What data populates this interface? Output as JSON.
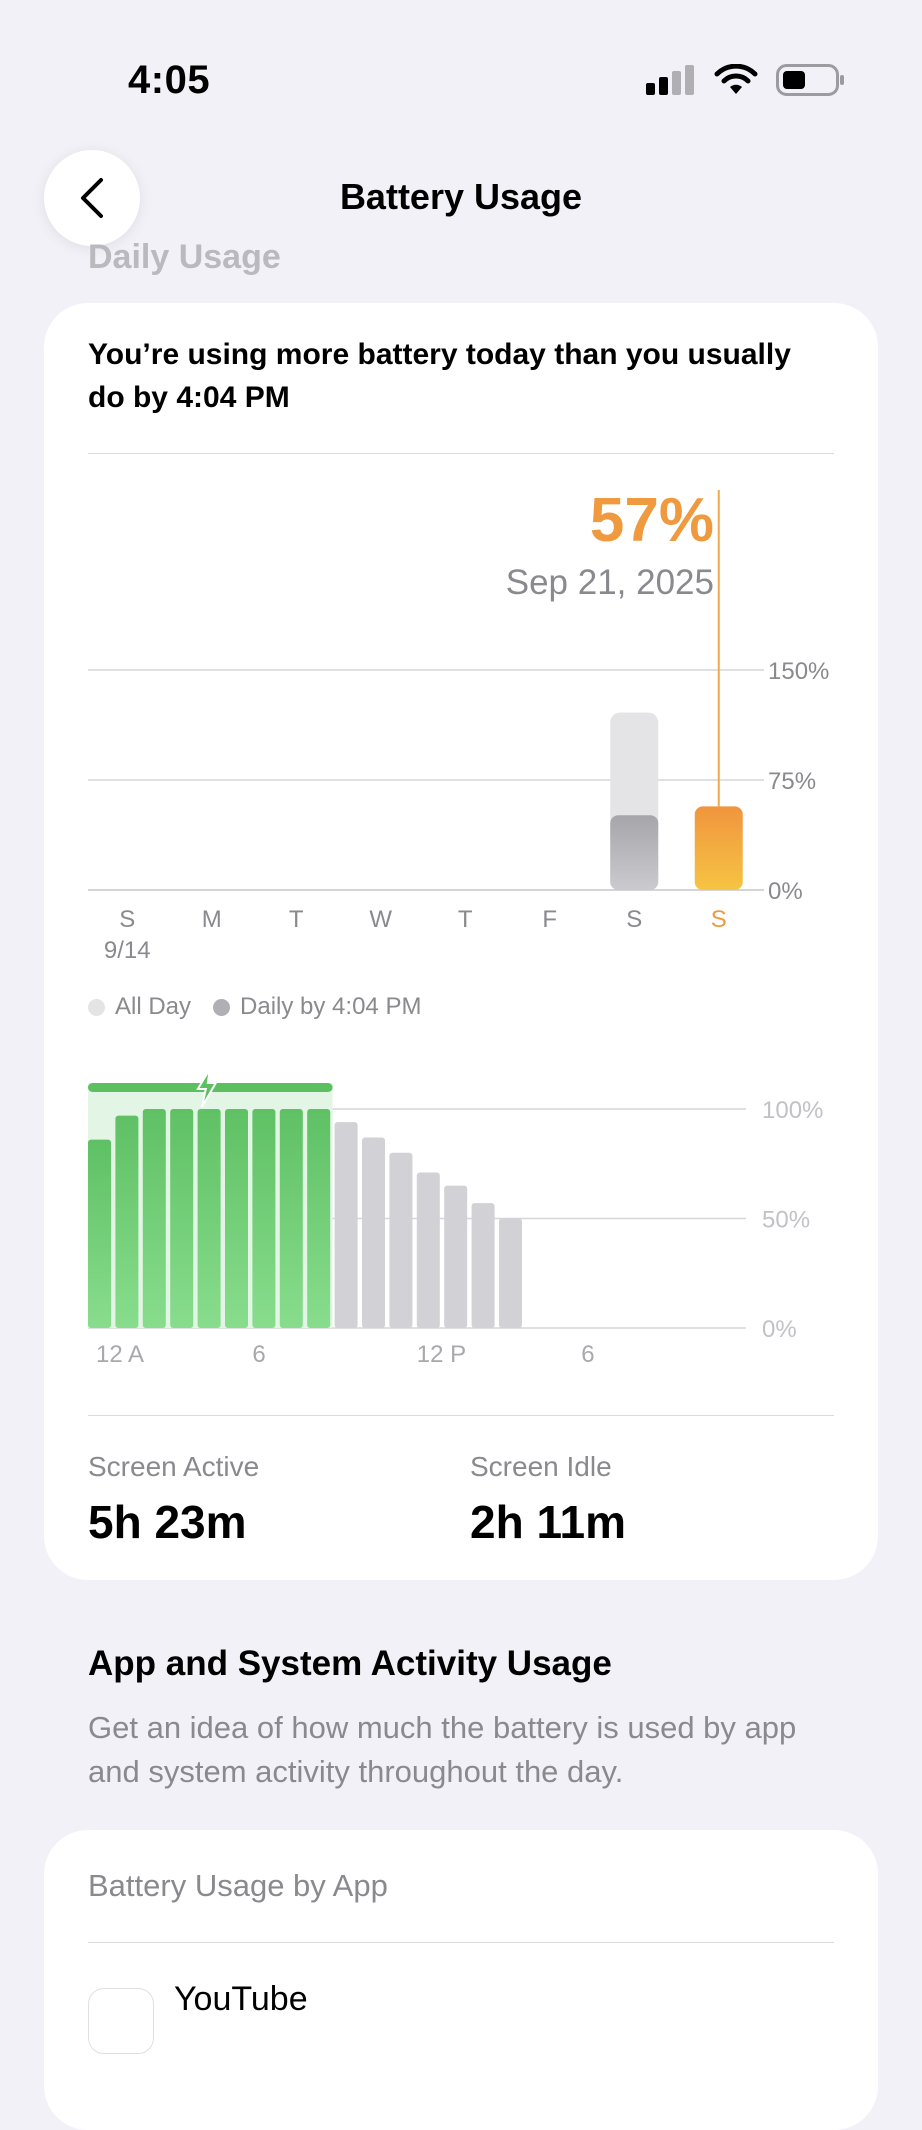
{
  "status_bar": {
    "time": "4:05"
  },
  "nav": {
    "title": "Battery Usage",
    "section_label": "Daily Usage"
  },
  "summary_card": {
    "headline": "You’re using more battery today than you usually do by 4:04 PM",
    "selected_value": "57%",
    "selected_date": "Sep 21, 2025",
    "screen_active_label": "Screen Active",
    "screen_active_value": "5h 23m",
    "screen_idle_label": "Screen Idle",
    "screen_idle_value": "2h 11m"
  },
  "chart_data": [
    {
      "type": "bar",
      "categories": [
        "S",
        "M",
        "T",
        "W",
        "T",
        "F",
        "S",
        "S"
      ],
      "first_date_label": "9/14",
      "series": [
        {
          "name": "All Day",
          "values": [
            0,
            0,
            0,
            0,
            0,
            0,
            121,
            null
          ]
        },
        {
          "name": "Daily by 4:04 PM",
          "values": [
            0,
            0,
            0,
            0,
            0,
            0,
            51,
            57
          ]
        }
      ],
      "y_ticks": [
        "0%",
        "75%",
        "150%"
      ],
      "ylim": [
        0,
        150
      ],
      "highlight_index": 7,
      "colors": {
        "all_day": "#e4e4e6",
        "by_time": "#b5b5b9",
        "today": "#f0a23c",
        "highlight_text": "#ef9a3e"
      }
    },
    {
      "type": "bar",
      "x_ticks": [
        "12 A",
        "6",
        "12 P",
        "6"
      ],
      "y_ticks": [
        "0%",
        "50%",
        "100%"
      ],
      "ylim": [
        0,
        100
      ],
      "hours": [
        "0",
        "1",
        "2",
        "3",
        "4",
        "5",
        "6",
        "7",
        "8",
        "9",
        "10",
        "11",
        "12",
        "13",
        "14",
        "15"
      ],
      "values": [
        86,
        97,
        100,
        100,
        100,
        100,
        100,
        100,
        100,
        94,
        87,
        80,
        71,
        65,
        57,
        50
      ],
      "charging_hours": [
        0,
        8
      ],
      "colors": {
        "charging": "#6cc96f",
        "discharging": "#d1d1d6"
      }
    }
  ],
  "section2": {
    "title": "App and System Activity Usage",
    "description": "Get an idea of how much the battery is used by app and system activity throughout the day.",
    "card_title": "Battery Usage by App",
    "first_app": "YouTube"
  }
}
